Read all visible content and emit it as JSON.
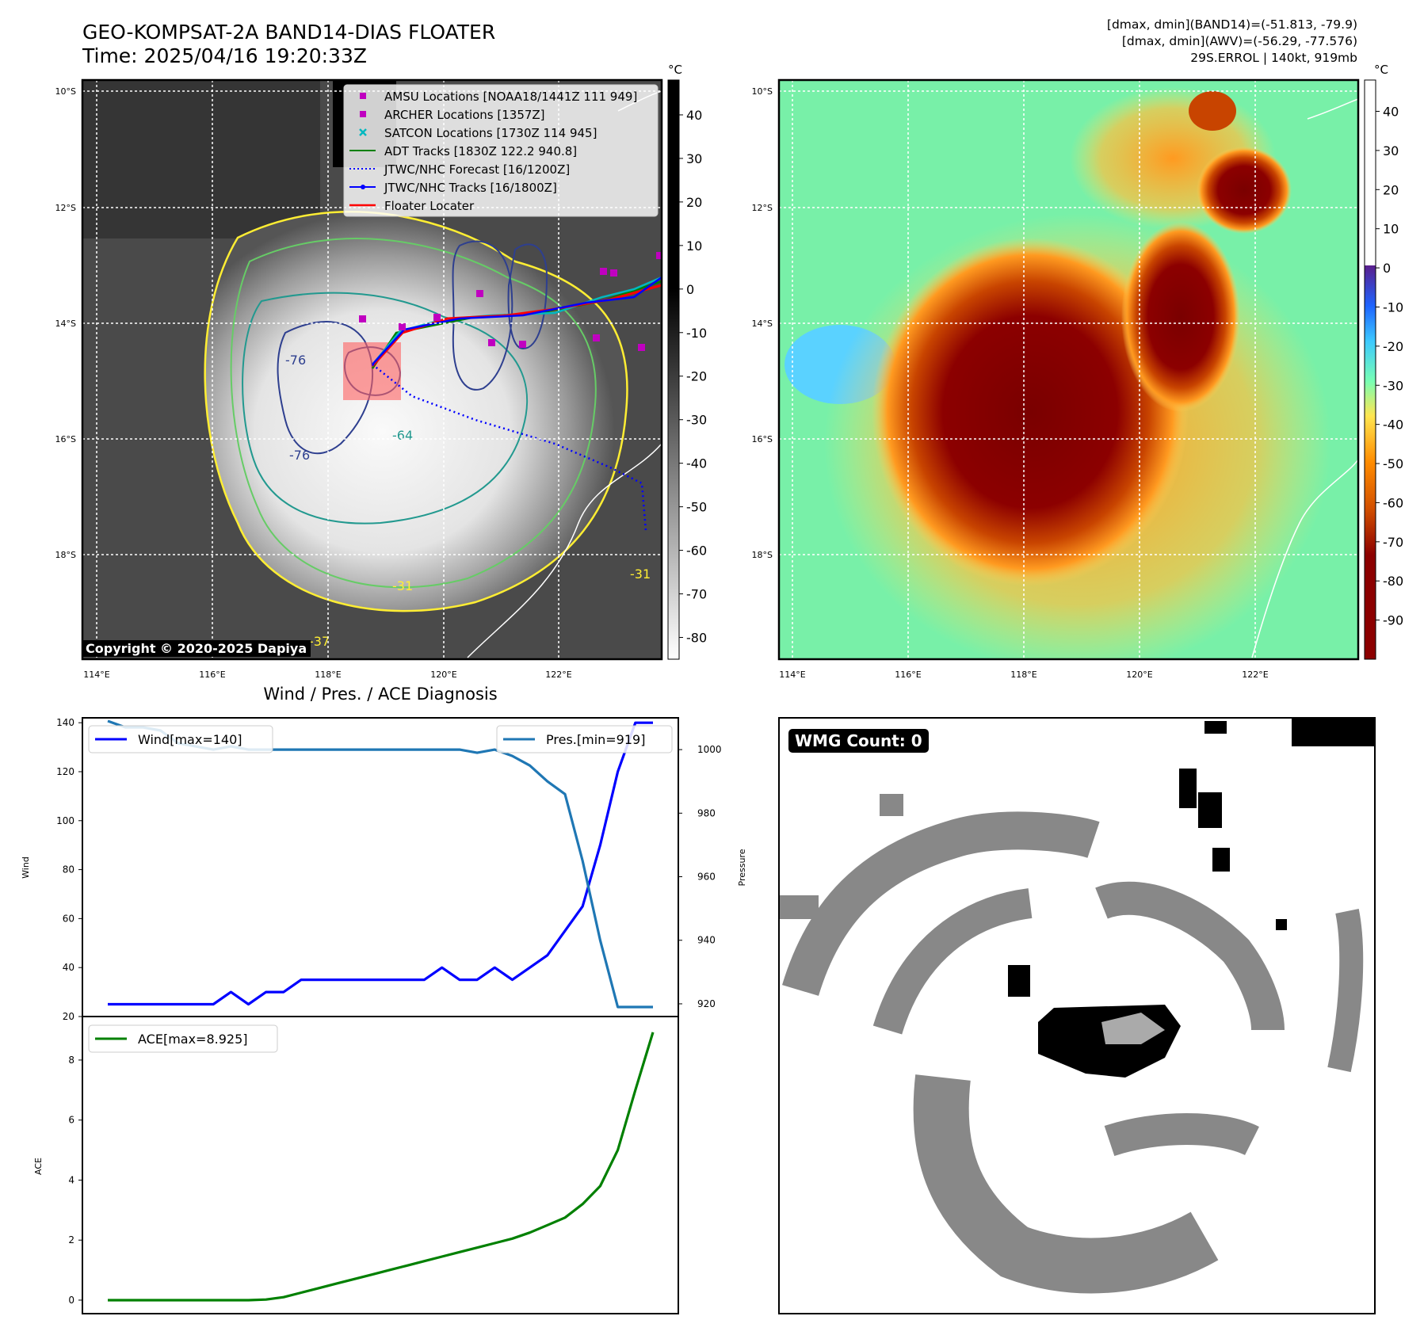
{
  "title": {
    "line1": "GEO-KOMPSAT-2A BAND14-DIAS FLOATER",
    "line2": "Time: 2025/04/16 19:20:33Z"
  },
  "info": {
    "line1": "[dmax, dmin](BAND14)=(-51.813, -79.9)",
    "line2": "[dmax, dmin](AWV)=(-56.29, -77.576)",
    "line3": "29S.ERROL | 140kt, 919mb"
  },
  "map": {
    "lat_labels": [
      "10°S",
      "12°S",
      "14°S",
      "16°S",
      "18°S"
    ],
    "lon_labels": [
      "114°E",
      "116°E",
      "118°E",
      "120°E",
      "122°E"
    ],
    "copyright": "Copyright © 2020-2025 Dapiya",
    "contour_labels": [
      "-76",
      "-76",
      "-64",
      "-31",
      "-31",
      "-37"
    ]
  },
  "legend": {
    "items": [
      {
        "label": "AMSU Locations [NOAA18/1441Z 111 949]",
        "color": "#c000c0",
        "symbol": "square"
      },
      {
        "label": "ARCHER Locations [1357Z]",
        "color": "#c000c0",
        "symbol": "square"
      },
      {
        "label": "SATCON Locations [1730Z 114 945]",
        "color": "#00b8c0",
        "symbol": "x"
      },
      {
        "label": "ADT Tracks [1830Z 122.2 940.8]",
        "color": "#008000",
        "symbol": "line"
      },
      {
        "label": "JTWC/NHC Forecast [16/1200Z]",
        "color": "#0000ff",
        "symbol": "dotted"
      },
      {
        "label": "JTWC/NHC Tracks [16/1800Z]",
        "color": "#0000ff",
        "symbol": "line-dot"
      },
      {
        "label": "Floater Locater",
        "color": "#ff0000",
        "symbol": "line"
      }
    ]
  },
  "colorbar_gray": {
    "unit": "°C",
    "ticks": [
      40,
      30,
      20,
      10,
      0,
      -10,
      -20,
      -30,
      -40,
      -50,
      -60,
      -70,
      -80
    ],
    "range": [
      -85,
      48
    ]
  },
  "colorbar_color": {
    "unit": "°C",
    "ticks": [
      40,
      30,
      20,
      10,
      0,
      -10,
      -20,
      -30,
      -40,
      -50,
      -60,
      -70,
      -80,
      -90
    ],
    "range": [
      -100,
      48
    ]
  },
  "diagnosis_title": "Wind / Pres. / ACE Diagnosis",
  "wmg": {
    "label": "WMG Count: 0"
  },
  "chart_data": [
    {
      "type": "line",
      "title": "Wind / Pres. / ACE Diagnosis",
      "xlabel": "",
      "ylabel": "Wind",
      "ylabel_right": "Pressure",
      "ylim": [
        20,
        142
      ],
      "ylim_right": [
        916,
        1010
      ],
      "yticks": [
        20,
        40,
        60,
        80,
        100,
        120,
        140
      ],
      "yticks_right": [
        920,
        940,
        960,
        980,
        1000
      ],
      "series": [
        {
          "name": "Wind[max=140]",
          "color": "#0000ff",
          "axis": "left",
          "values": [
            25,
            25,
            25,
            25,
            25,
            25,
            25,
            30,
            25,
            30,
            30,
            35,
            35,
            35,
            35,
            35,
            35,
            35,
            35,
            40,
            35,
            35,
            40,
            35,
            40,
            45,
            55,
            65,
            90,
            120,
            140,
            140
          ]
        },
        {
          "name": "Pres.[min=919]",
          "color": "#1f77b4",
          "axis": "right",
          "values": [
            1009,
            1007,
            1007,
            1006,
            1002,
            1001,
            1000,
            1001,
            1000,
            1000,
            1000,
            1000,
            1000,
            1000,
            1000,
            1000,
            1000,
            1000,
            1000,
            1000,
            1000,
            999,
            1000,
            998,
            995,
            990,
            986,
            965,
            940,
            919,
            919,
            919
          ]
        }
      ]
    },
    {
      "type": "line",
      "title": "",
      "xlabel": "",
      "ylabel": "ACE",
      "ylim": [
        -0.45,
        9.45
      ],
      "yticks": [
        0,
        2,
        4,
        6,
        8
      ],
      "series": [
        {
          "name": "ACE[max=8.925]",
          "color": "#008000",
          "values": [
            0,
            0,
            0,
            0,
            0,
            0,
            0,
            0,
            0,
            0.02,
            0.1,
            0.25,
            0.4,
            0.55,
            0.7,
            0.85,
            1.0,
            1.15,
            1.3,
            1.45,
            1.6,
            1.75,
            1.9,
            2.05,
            2.25,
            2.5,
            2.75,
            3.2,
            3.8,
            5.0,
            7.0,
            8.925
          ]
        }
      ]
    }
  ]
}
